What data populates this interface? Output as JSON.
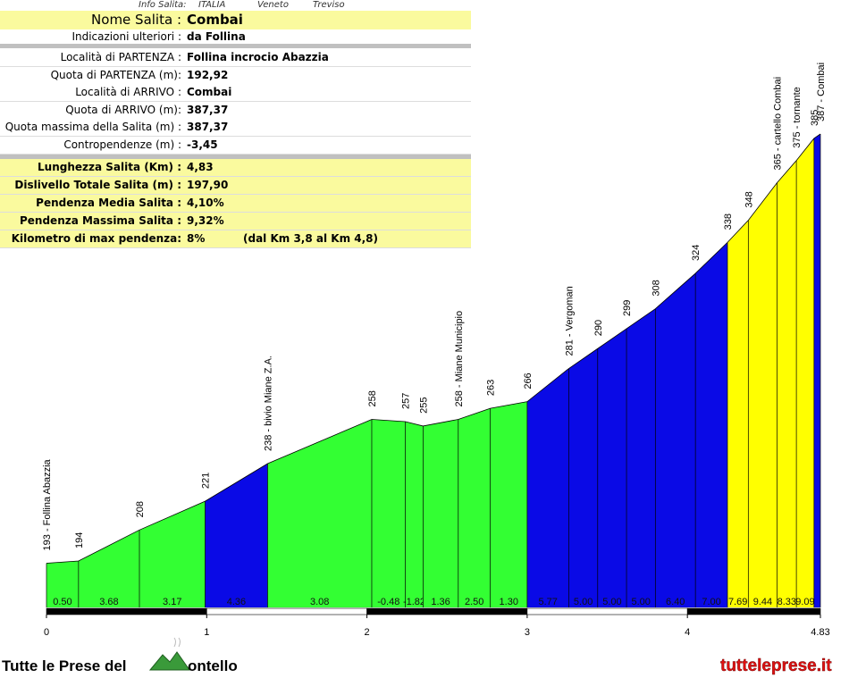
{
  "info": {
    "header": [
      "Info Salita:",
      "ITALIA",
      "Veneto",
      "Treviso"
    ],
    "name_row": [
      "Nome Salita :",
      "Combai"
    ],
    "sub_row": [
      "Indicazioni ulteriori :",
      "da Follina"
    ],
    "rows": [
      [
        "Località di PARTENZA :",
        "Follina incrocio Abazzia"
      ],
      [
        "Quota di PARTENZA (m):",
        "192,92"
      ],
      [
        "Località di ARRIVO :",
        "Combai"
      ],
      [
        "Quota di ARRIVO (m):",
        "387,37"
      ],
      [
        "Quota massima della Salita (m) :",
        "387,37"
      ],
      [
        "Contropendenze (m) :",
        "-3,45"
      ]
    ],
    "summary_rows": [
      [
        "Lunghezza Salita (Km) :",
        "4,83"
      ],
      [
        "Dislivello Totale Salita (m) :",
        "197,90"
      ],
      [
        "Pendenza Media Salita :",
        "4,10%"
      ],
      [
        "Pendenza Massima Salita :",
        "9,32%"
      ],
      [
        "Kilometro di max pendenza:",
        "8%",
        "(dal Km 3,8 al Km 4,8)"
      ]
    ]
  },
  "chart_data": {
    "type": "area",
    "x": [
      0,
      0.2,
      0.58,
      0.99,
      1.38,
      2.03,
      2.24,
      2.35,
      2.57,
      2.77,
      3.0,
      3.26,
      3.44,
      3.62,
      3.8,
      4.05,
      4.25,
      4.38,
      4.56,
      4.68,
      4.79,
      4.83
    ],
    "values": [
      193,
      194,
      208,
      221,
      238,
      258,
      257,
      255,
      258,
      263,
      266,
      281,
      290,
      299,
      308,
      324,
      338,
      348,
      365,
      375,
      385,
      387
    ],
    "value_labels": [
      "193 - Follina Abazzia",
      "194",
      "208",
      "221",
      "238 - bivio Miane Z.A.",
      "258",
      "257",
      "255",
      "258 - Miane Municipio",
      "263",
      "266",
      "281 - Vergoman",
      "290",
      "299",
      "308",
      "324",
      "338",
      "348",
      "365 - cartello Combai",
      "375 - tornante",
      "385",
      "387 - Combai"
    ],
    "segment_labels": [
      "0.50",
      "3.68",
      "3.17",
      "4.36",
      "3.08",
      "-0.48",
      "-1.82",
      "1.36",
      "2.50",
      "1.30",
      "5.77",
      "5.00",
      "5.00",
      "5.00",
      "6.40",
      "7.00",
      "7.69",
      "9.44",
      "8.33",
      "9.09",
      null
    ],
    "segment_colors": [
      "#33ff33",
      "#33ff33",
      "#33ff33",
      "#0a0ae6",
      "#33ff33",
      "#33ff33",
      "#33ff33",
      "#33ff33",
      "#33ff33",
      "#33ff33",
      "#0a0ae6",
      "#0a0ae6",
      "#0a0ae6",
      "#0a0ae6",
      "#0a0ae6",
      "#0a0ae6",
      "#ffff00",
      "#ffff00",
      "#ffff00",
      "#ffff00",
      "#0a0ae6"
    ],
    "xlim": [
      0,
      4.83
    ],
    "xticks": [
      0,
      1,
      2,
      3,
      4,
      4.83
    ],
    "ylim": [
      173,
      387
    ]
  },
  "footer": {
    "brand": "Tutte le Prese del",
    "brand_end": "ontello",
    "site": "tutteleprese.it"
  }
}
